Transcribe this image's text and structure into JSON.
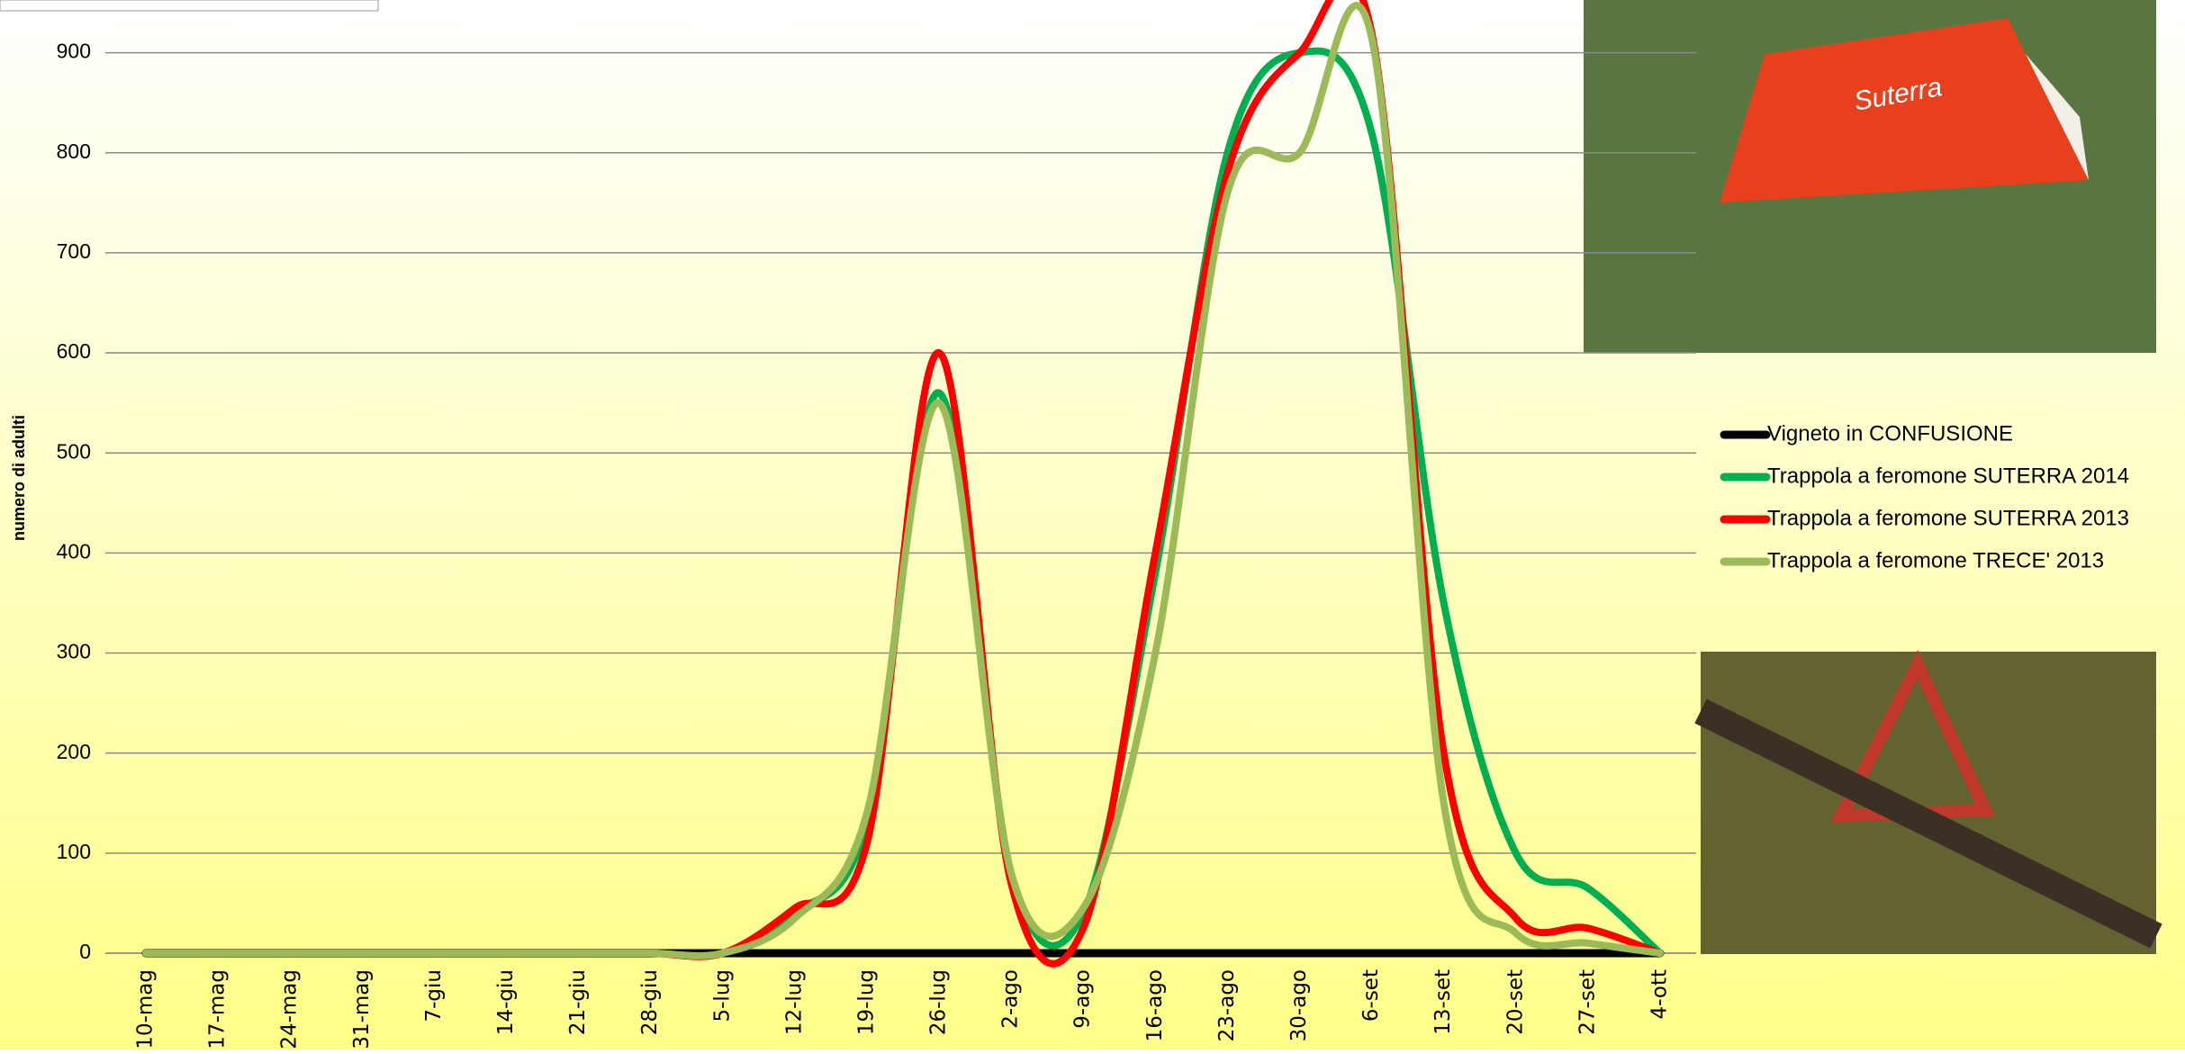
{
  "chart_data": {
    "type": "line",
    "y_label": "numero di adulti",
    "categories": [
      "10-mag",
      "17-mag",
      "24-mag",
      "31-mag",
      "7-giu",
      "14-giu",
      "21-giu",
      "28-giu",
      "5-lug",
      "12-lug",
      "19-lug",
      "26-lug",
      "2-ago",
      "9-ago",
      "16-ago",
      "23-ago",
      "30-ago",
      "6-set",
      "13-set",
      "20-set",
      "27-set",
      "4-ott"
    ],
    "series": [
      {
        "name": "Vigneto in CONFUSIONE",
        "color": "#000000",
        "values": [
          0,
          0,
          0,
          0,
          0,
          0,
          0,
          0,
          0,
          0,
          0,
          0,
          0,
          0,
          0,
          0,
          0,
          0,
          0,
          0,
          0,
          0
        ]
      },
      {
        "name": "Trappola a feromone SUTERRA 2014",
        "color": "#00b050",
        "values": [
          0,
          0,
          0,
          0,
          0,
          0,
          0,
          0,
          0,
          40,
          130,
          560,
          80,
          40,
          380,
          800,
          900,
          820,
          350,
          100,
          65,
          0
        ]
      },
      {
        "name": "Trappola a feromone SUTERRA 2013",
        "color": "#ff0000",
        "values": [
          0,
          0,
          0,
          0,
          0,
          0,
          0,
          0,
          0,
          45,
          110,
          600,
          70,
          25,
          400,
          780,
          900,
          920,
          200,
          35,
          25,
          0
        ]
      },
      {
        "name": "Trappola a feromone TRECE' 2013",
        "color": "#9bbb59",
        "values": [
          0,
          0,
          0,
          0,
          0,
          0,
          0,
          0,
          0,
          35,
          140,
          550,
          80,
          45,
          300,
          760,
          800,
          915,
          150,
          20,
          10,
          0
        ]
      }
    ],
    "ylim": [
      0,
      950
    ],
    "yticks": [
      0,
      100,
      200,
      300,
      400,
      500,
      600,
      700,
      800,
      900
    ],
    "grid": true
  }
}
